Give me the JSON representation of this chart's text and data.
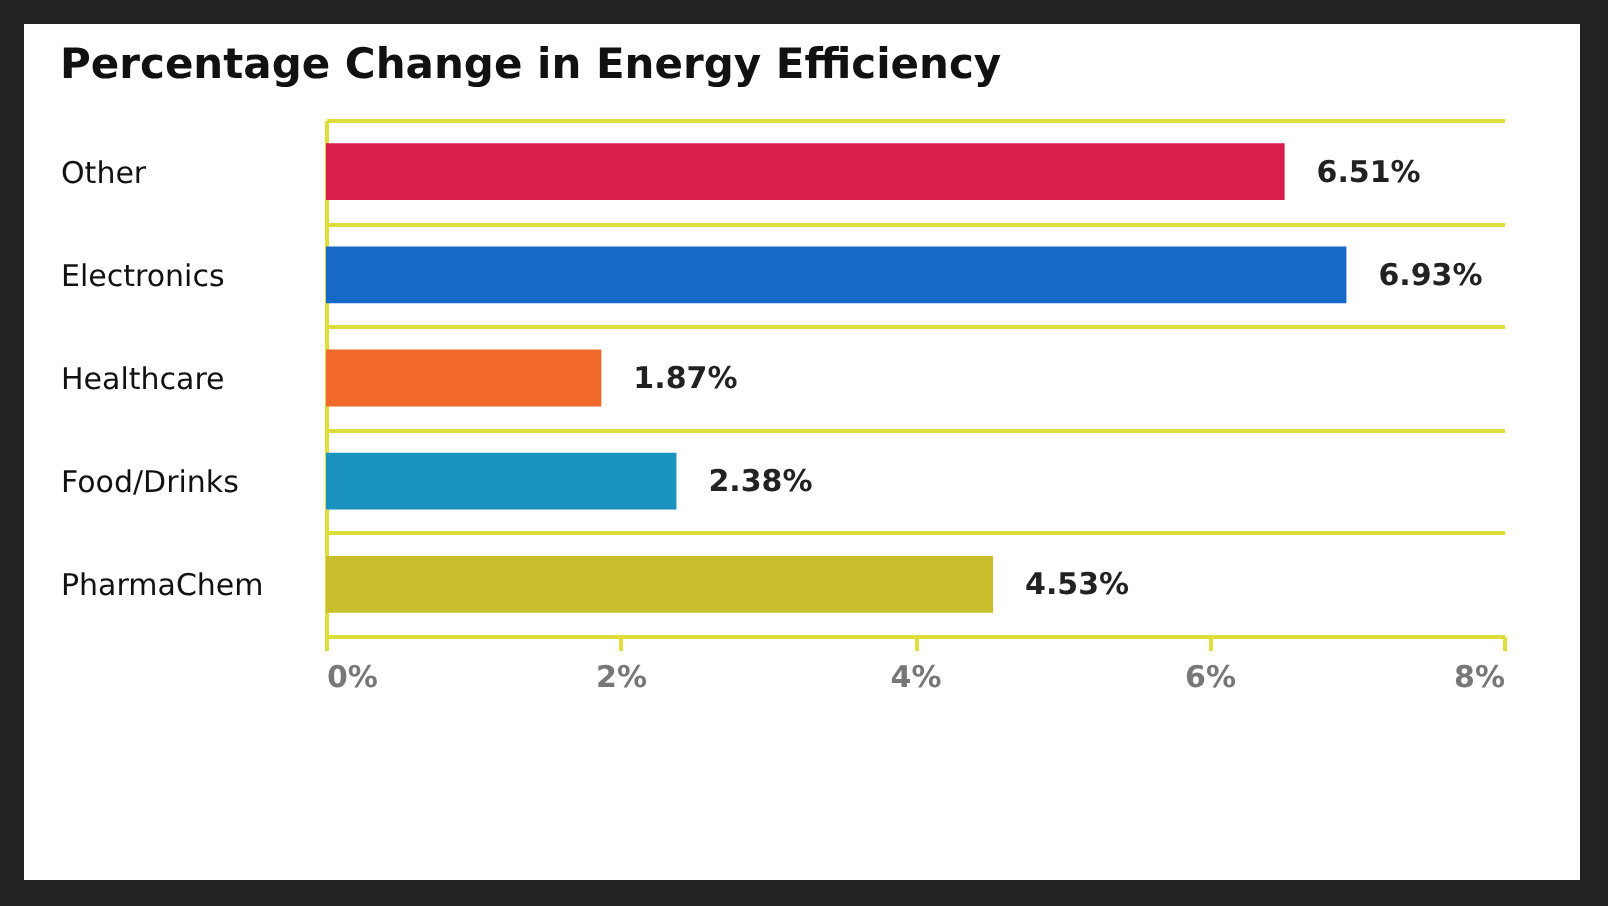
{
  "chart_data": {
    "type": "bar",
    "orientation": "horizontal",
    "title": "Percentage Change in Energy Efficiency",
    "categories": [
      "Other",
      "Electronics",
      "Healthcare",
      "Food/Drinks",
      "PharmaChem"
    ],
    "values": [
      6.51,
      6.93,
      1.87,
      2.38,
      4.53
    ],
    "colors": [
      "#d81e4a",
      "#1769c8",
      "#f26a2a",
      "#1a93bf",
      "#c9bd2b"
    ],
    "value_labels": [
      "6.51%",
      "6.93%",
      "1.87%",
      "2.38%",
      "4.53%"
    ],
    "xlim": [
      0,
      8
    ],
    "xticks": [
      {
        "value": 0,
        "label": "0%"
      },
      {
        "value": 2,
        "label": "2%"
      },
      {
        "value": 4,
        "label": "4%"
      },
      {
        "value": 6,
        "label": "6%"
      },
      {
        "value": 8,
        "label": "8%"
      }
    ],
    "grid": "y"
  }
}
